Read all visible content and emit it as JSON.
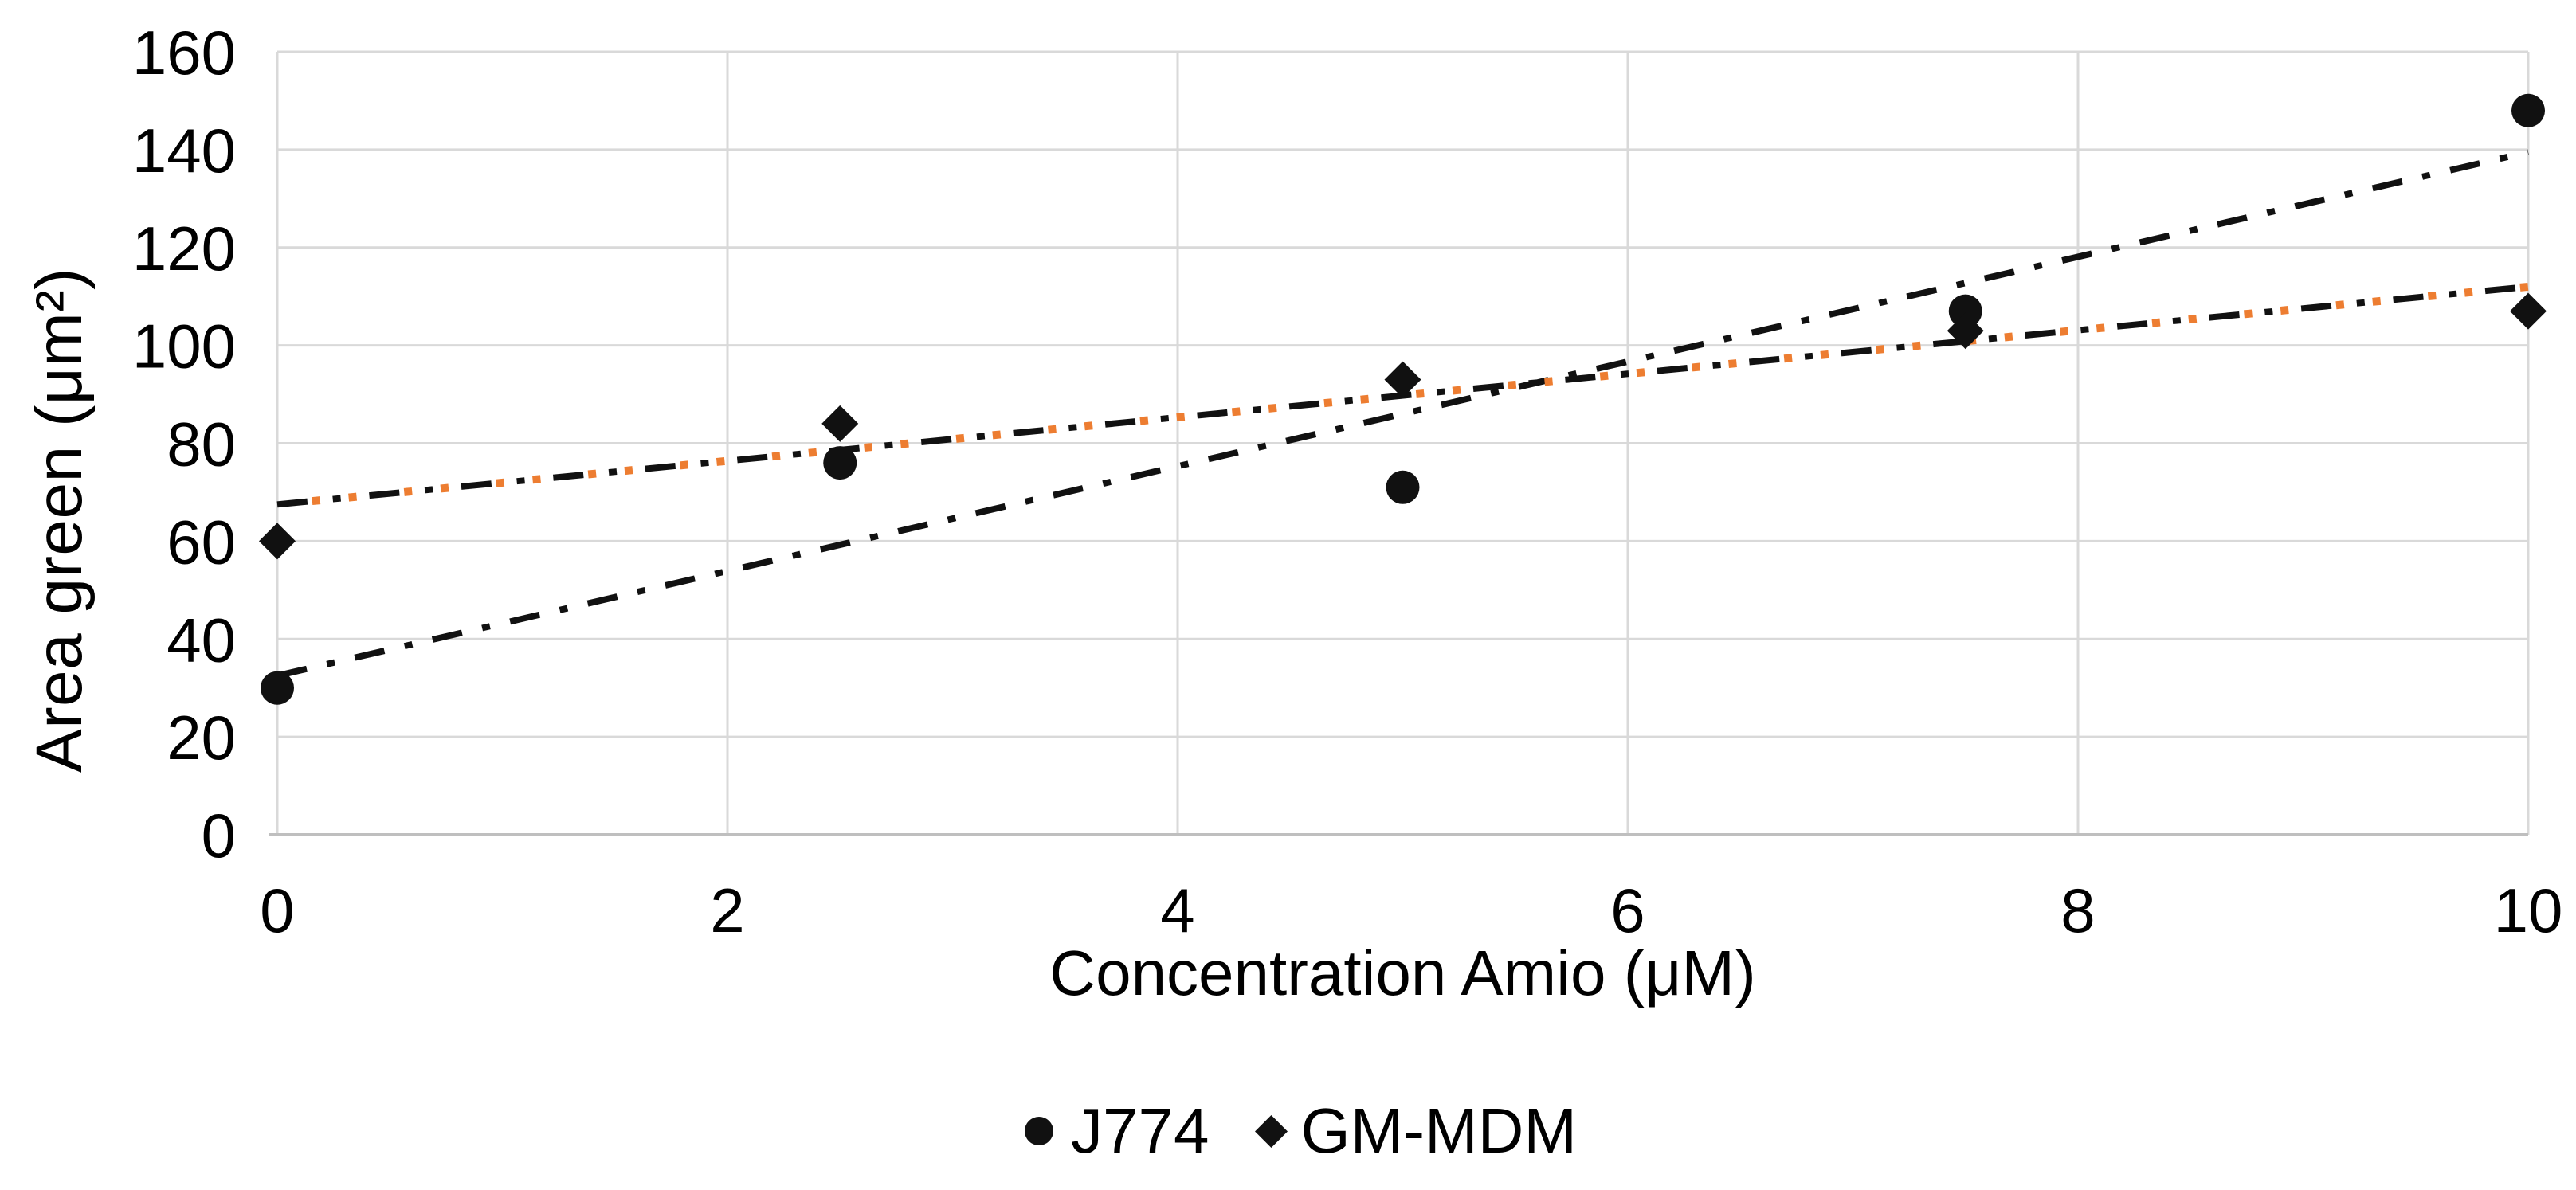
{
  "chart_data": {
    "type": "scatter",
    "title": "",
    "xlabel": "Concentration Amio (μM)",
    "ylabel": "Area green (μm²)",
    "xlim": [
      0,
      10
    ],
    "ylim": [
      0,
      160
    ],
    "x_ticks": [
      0,
      2,
      4,
      6,
      8,
      10
    ],
    "y_ticks": [
      0,
      20,
      40,
      60,
      80,
      100,
      120,
      140,
      160
    ],
    "grid": true,
    "legend_position": "bottom-center",
    "series": [
      {
        "name": "J774",
        "marker": "circle",
        "color": "#111111",
        "points": [
          [
            0,
            30
          ],
          [
            2.5,
            76
          ],
          [
            5,
            71
          ],
          [
            7.5,
            107
          ],
          [
            10,
            148
          ]
        ],
        "trendline": {
          "style": "dash-dot",
          "color": "#111111",
          "from": [
            0,
            32.5
          ],
          "to": [
            10,
            139.5
          ]
        }
      },
      {
        "name": "GM-MDM",
        "marker": "diamond",
        "color": "#111111",
        "points": [
          [
            0,
            60
          ],
          [
            2.5,
            84
          ],
          [
            5,
            93
          ],
          [
            7.5,
            103
          ],
          [
            10,
            107
          ]
        ],
        "trendline": {
          "style": "dash-dot-dot",
          "color": "#111111",
          "accent_color": "#ED7D31",
          "from": [
            0,
            67.5
          ],
          "to": [
            10,
            112
          ]
        }
      }
    ]
  },
  "colors": {
    "grid": "#d9d9d9",
    "axis": "#bfbfbf",
    "text": "#000000",
    "marker": "#111111",
    "trend_orange": "#ED7D31",
    "background": "#ffffff"
  }
}
